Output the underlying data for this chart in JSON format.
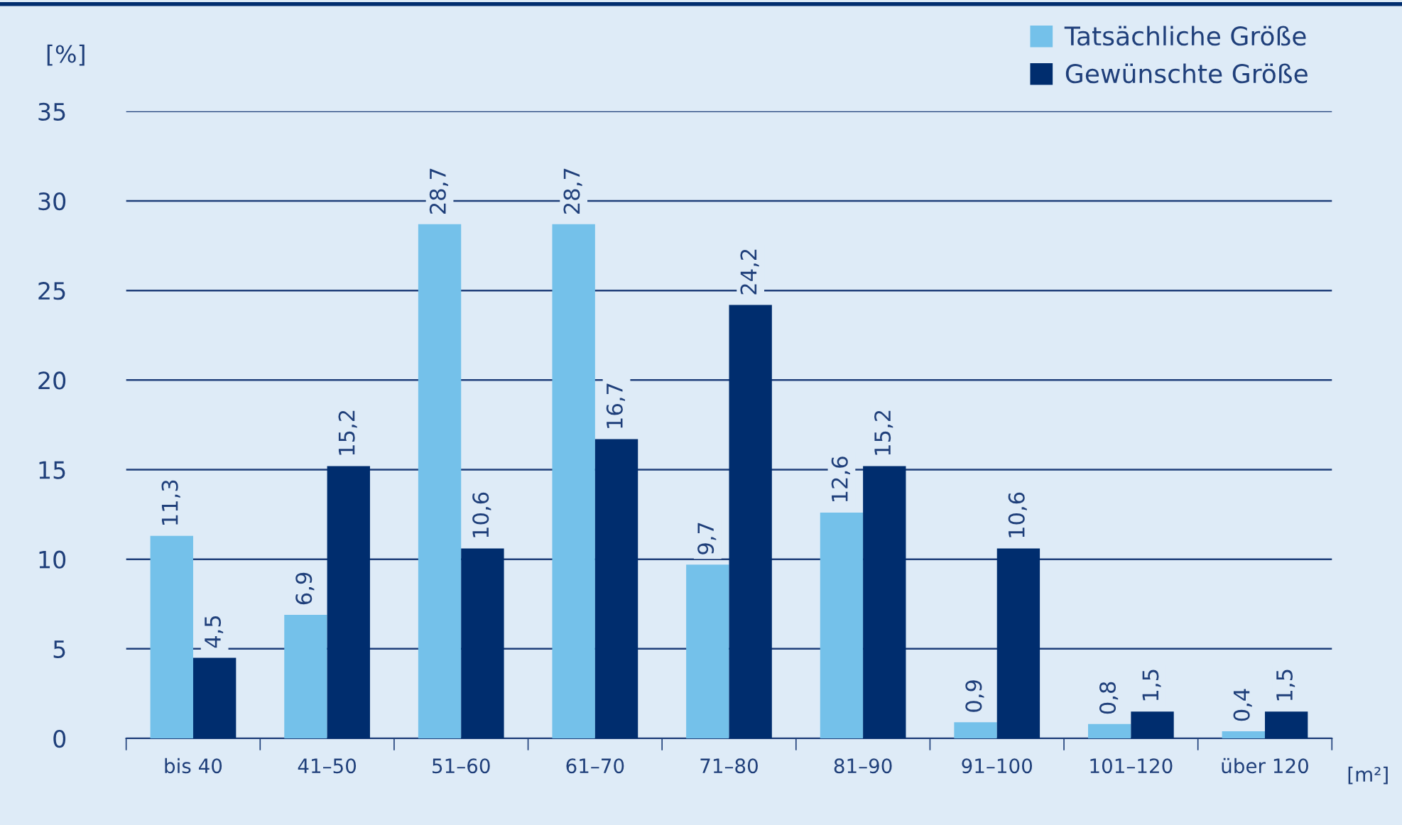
{
  "chart_data": {
    "type": "bar",
    "ylabel": "[%]",
    "xlabel": "[m²]",
    "categories": [
      "bis 40",
      "41–50",
      "51–60",
      "61–70",
      "71–80",
      "81–90",
      "91–100",
      "101–120",
      "über 120"
    ],
    "series": [
      {
        "name": "Tatsächliche Größe",
        "color": "#74c1ea",
        "values": [
          11.3,
          6.9,
          28.7,
          28.7,
          9.7,
          12.6,
          0.9,
          0.8,
          0.4
        ],
        "value_labels": [
          "11,3",
          "6,9",
          "28,7",
          "28,7",
          "9,7",
          "12,6",
          "0,9",
          "0,8",
          "0,4"
        ]
      },
      {
        "name": "Gewünschte Größe",
        "color": "#002d6e",
        "values": [
          4.5,
          15.2,
          10.6,
          16.7,
          24.2,
          15.2,
          10.6,
          1.5,
          1.5
        ],
        "value_labels": [
          "4,5",
          "15,2",
          "10,6",
          "16,7",
          "24,2",
          "15,2",
          "10,6",
          "1,5",
          "1,5"
        ]
      }
    ],
    "ylim": [
      0,
      35
    ],
    "yticks": [
      0,
      5,
      10,
      15,
      20,
      25,
      30,
      35
    ],
    "grid": "y",
    "legend": "top right"
  }
}
